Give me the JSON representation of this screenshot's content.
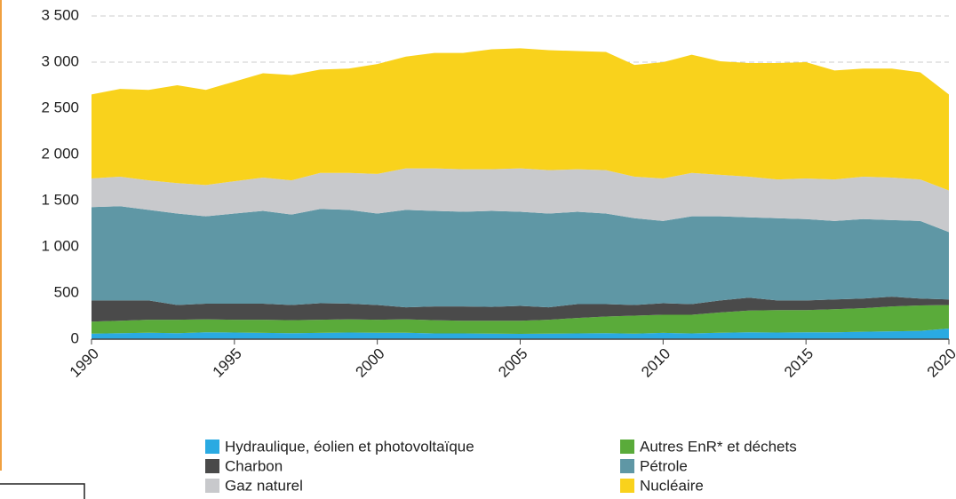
{
  "chart_data": {
    "type": "stacked_area",
    "x": [
      1990,
      1991,
      1992,
      1993,
      1994,
      1995,
      1996,
      1997,
      1998,
      1999,
      2000,
      2001,
      2002,
      2003,
      2004,
      2005,
      2006,
      2007,
      2008,
      2009,
      2010,
      2011,
      2012,
      2013,
      2014,
      2015,
      2016,
      2017,
      2018,
      2019,
      2020
    ],
    "xlim": [
      1990,
      2020
    ],
    "xticks": [
      1990,
      1995,
      2000,
      2005,
      2010,
      2015,
      2020
    ],
    "ylim": [
      0,
      3500
    ],
    "yticks": [
      0,
      500,
      {
        "value": 1000,
        "label": "1 000"
      },
      {
        "value": 1500,
        "label": "1 500"
      },
      {
        "value": 2000,
        "label": "2 000"
      },
      {
        "value": 2500,
        "label": "2 500"
      },
      {
        "value": 3000,
        "label": "3 000"
      },
      {
        "value": 3500,
        "label": "3 500"
      }
    ],
    "grid": true,
    "series": [
      {
        "name": "Hydraulique, éolien et photovoltaïque",
        "color": "#2aaae2",
        "values": [
          60,
          65,
          70,
          65,
          75,
          72,
          68,
          65,
          68,
          72,
          70,
          70,
          62,
          62,
          60,
          58,
          60,
          62,
          65,
          60,
          68,
          62,
          70,
          75,
          72,
          75,
          75,
          80,
          85,
          90,
          115
        ]
      },
      {
        "name": "Autres EnR* et déchets",
        "color": "#5aab3a",
        "values": [
          130,
          135,
          140,
          145,
          140,
          138,
          142,
          140,
          142,
          143,
          140,
          145,
          143,
          138,
          140,
          142,
          150,
          168,
          180,
          195,
          197,
          203,
          220,
          235,
          243,
          240,
          250,
          255,
          270,
          275,
          255
        ]
      },
      {
        "name": "Charbon",
        "color": "#4a4a4a",
        "values": [
          230,
          220,
          210,
          160,
          170,
          175,
          175,
          165,
          180,
          170,
          160,
          130,
          150,
          155,
          150,
          160,
          135,
          150,
          135,
          115,
          125,
          115,
          130,
          140,
          105,
          105,
          105,
          105,
          105,
          75,
          60
        ]
      },
      {
        "name": "Pétrole",
        "color": "#5f97a5",
        "values": [
          1010,
          1020,
          980,
          990,
          945,
          975,
          1005,
          980,
          1020,
          1015,
          990,
          1055,
          1035,
          1025,
          1040,
          1020,
          1015,
          1000,
          980,
          940,
          890,
          950,
          910,
          870,
          890,
          880,
          850,
          860,
          830,
          840,
          730
        ]
      },
      {
        "name": "Gaz naturel",
        "color": "#c8c9cc",
        "values": [
          310,
          320,
          320,
          330,
          340,
          350,
          360,
          370,
          390,
          400,
          430,
          450,
          460,
          460,
          450,
          470,
          470,
          460,
          470,
          450,
          460,
          470,
          450,
          440,
          420,
          440,
          450,
          460,
          460,
          450,
          450
        ]
      },
      {
        "name": "Nucléaire",
        "color": "#f9d21c",
        "values": [
          910,
          950,
          980,
          1060,
          1030,
          1080,
          1130,
          1140,
          1120,
          1130,
          1190,
          1210,
          1250,
          1260,
          1300,
          1300,
          1300,
          1280,
          1280,
          1210,
          1260,
          1280,
          1230,
          1230,
          1260,
          1260,
          1180,
          1170,
          1180,
          1160,
          1040
        ]
      }
    ]
  }
}
